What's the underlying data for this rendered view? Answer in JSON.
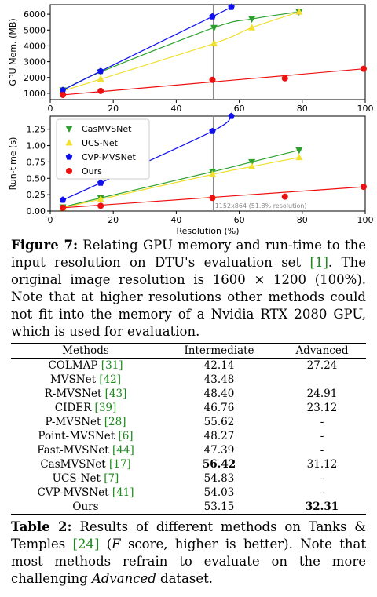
{
  "chart_data": [
    {
      "type": "line",
      "ylabel": "GPU Mem. (MB)",
      "xlim": [
        0,
        100
      ],
      "ylim": [
        600,
        6600
      ],
      "xticks": [
        0,
        20,
        40,
        60,
        80,
        100
      ],
      "yticks": [
        1000,
        2000,
        3000,
        4000,
        5000,
        6000
      ],
      "series": [
        {
          "name": "CasMVSNet",
          "color": "#2ca02c",
          "marker": "triangle-down",
          "x": [
            4,
            16,
            52,
            64,
            79
          ],
          "y": [
            1200,
            2350,
            5150,
            5700,
            6150
          ]
        },
        {
          "name": "UCS-Net",
          "color": "#f0e030",
          "marker": "triangle-up",
          "x": [
            4,
            16,
            52,
            64,
            79
          ],
          "y": [
            1150,
            1900,
            4150,
            5150,
            6150
          ]
        },
        {
          "name": "CVP-MVSNet",
          "color": "#1010ee",
          "marker": "pentagon",
          "x": [
            4,
            16,
            51.5,
            57.5
          ],
          "y": [
            1200,
            2400,
            5850,
            6450
          ]
        },
        {
          "name": "Ours",
          "color": "#ee1010",
          "marker": "circle",
          "x": [
            4,
            16,
            51.5,
            74.5,
            99.5
          ],
          "y": [
            900,
            1150,
            1850,
            1950,
            2550
          ]
        }
      ]
    },
    {
      "type": "line",
      "xlabel": "Resolution (%)",
      "ylabel": "Run-time (s)",
      "xlim": [
        0,
        100
      ],
      "ylim": [
        0,
        1.45
      ],
      "xticks": [
        0,
        20,
        40,
        60,
        80,
        100
      ],
      "yticks": [
        0.0,
        0.25,
        0.5,
        0.75,
        1.0,
        1.25
      ],
      "ytick_labels": [
        "0.00",
        "0.25",
        "0.50",
        "0.75",
        "1.00",
        "1.25"
      ],
      "legend": "top-left",
      "series": [
        {
          "name": "CasMVSNet",
          "color": "#2ca02c",
          "marker": "triangle-down",
          "x": [
            4,
            16,
            51.5,
            64,
            79
          ],
          "y": [
            0.06,
            0.2,
            0.6,
            0.75,
            0.93
          ]
        },
        {
          "name": "UCS-Net",
          "color": "#f0e030",
          "marker": "triangle-up",
          "x": [
            4,
            16,
            51.5,
            64,
            79
          ],
          "y": [
            0.05,
            0.18,
            0.56,
            0.68,
            0.82
          ]
        },
        {
          "name": "CVP-MVSNet",
          "color": "#1010ee",
          "marker": "pentagon",
          "x": [
            4,
            16,
            51.5,
            57.5
          ],
          "y": [
            0.17,
            0.43,
            1.22,
            1.45
          ]
        },
        {
          "name": "Ours",
          "color": "#ee1010",
          "marker": "circle",
          "x": [
            4,
            16,
            51.5,
            74.5,
            99.5
          ],
          "y": [
            0.05,
            0.08,
            0.2,
            0.22,
            0.37
          ]
        }
      ]
    }
  ],
  "marker_line_x": 51.8,
  "marker_line_label": "1152x864 (51.8% resolution)",
  "figure_caption": {
    "label": "Figure 7:",
    "text_before_cite": " Relating GPU memory and run-time to the input resolution on DTU's evaluation set ",
    "cite": "[1]",
    "text_after_cite": ". The original image resolution is 1600 × 1200 (100%). Note that at higher resolutions other methods could not fit into the memory of a Nvidia RTX 2080 GPU, which is used for evaluation."
  },
  "table": {
    "headers": [
      "Methods",
      "Intermediate",
      "Advanced"
    ],
    "rows": [
      {
        "method": "COLMAP",
        "cite": "[31]",
        "intermediate": "42.14",
        "advanced": "27.24",
        "bold_int": false,
        "bold_adv": false
      },
      {
        "method": "MVSNet",
        "cite": "[42]",
        "intermediate": "43.48",
        "advanced": "",
        "bold_int": false,
        "bold_adv": false
      },
      {
        "method": "R-MVSNet",
        "cite": "[43]",
        "intermediate": "48.40",
        "advanced": "24.91",
        "bold_int": false,
        "bold_adv": false
      },
      {
        "method": "CIDER",
        "cite": "[39]",
        "intermediate": "46.76",
        "advanced": "23.12",
        "bold_int": false,
        "bold_adv": false
      },
      {
        "method": "P-MVSNet",
        "cite": "[28]",
        "intermediate": "55.62",
        "advanced": "-",
        "bold_int": false,
        "bold_adv": false
      },
      {
        "method": "Point-MVSNet",
        "cite": "[6]",
        "intermediate": "48.27",
        "advanced": "-",
        "bold_int": false,
        "bold_adv": false
      },
      {
        "method": "Fast-MVSNet",
        "cite": "[44]",
        "intermediate": "47.39",
        "advanced": "-",
        "bold_int": false,
        "bold_adv": false
      },
      {
        "method": "CasMVSNet",
        "cite": "[17]",
        "intermediate": "56.42",
        "advanced": "31.12",
        "bold_int": true,
        "bold_adv": false
      },
      {
        "method": "UCS-Net",
        "cite": "[7]",
        "intermediate": "54.83",
        "advanced": "-",
        "bold_int": false,
        "bold_adv": false
      },
      {
        "method": "CVP-MVSNet",
        "cite": "[41]",
        "intermediate": "54.03",
        "advanced": "-",
        "bold_int": false,
        "bold_adv": false
      },
      {
        "method": "Ours",
        "cite": "",
        "intermediate": "53.15",
        "advanced": "32.31",
        "bold_int": false,
        "bold_adv": true
      }
    ]
  },
  "table_caption": {
    "label": "Table 2:",
    "text_before_cite": " Results of different methods on Tanks & Temples ",
    "cite": "[24]",
    "text_after_cite_1": " (",
    "italic_1": "F",
    "text_after_cite_2": " score, higher is better). Note that most methods refrain to evaluate on the more challenging ",
    "italic_2": "Advanced",
    "text_after_cite_3": " dataset."
  }
}
